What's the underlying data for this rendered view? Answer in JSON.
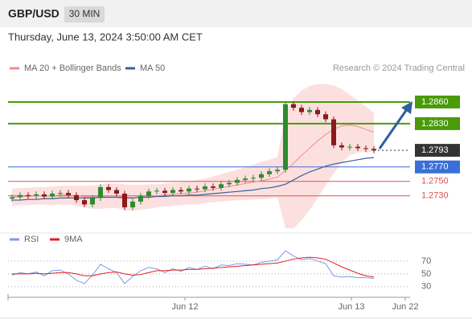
{
  "header": {
    "symbol": "GBP/USD",
    "timeframe": "30 MIN",
    "datetime": "Thursday, June 13, 2024 3:50:00 AM CET"
  },
  "chart_data": [
    {
      "type": "candlestick",
      "credit": "Research © 2024 Trading Central",
      "xlim": [
        -0.5,
        49.5
      ],
      "ylim": [
        1.2684,
        1.289
      ],
      "up_color": "#2e8b2e",
      "down_color": "#8b1a1a",
      "open": [
        1.2726,
        1.2728,
        1.2731,
        1.273,
        1.2732,
        1.2729,
        1.2733,
        1.2734,
        1.2731,
        1.2724,
        1.2718,
        1.2727,
        1.2742,
        1.2738,
        1.2733,
        1.2714,
        1.2722,
        1.273,
        1.2736,
        1.2737,
        1.2734,
        1.2738,
        1.2736,
        1.274,
        1.2739,
        1.2743,
        1.2741,
        1.2746,
        1.2748,
        1.2752,
        1.2754,
        1.2755,
        1.276,
        1.2764,
        1.2766,
        1.2857,
        1.2852,
        1.2846,
        1.2849,
        1.2843,
        1.2836,
        1.28,
        1.2797,
        1.2798,
        1.2796,
        1.2795
      ],
      "high": [
        1.2732,
        1.2735,
        1.2735,
        1.2736,
        1.2736,
        1.2737,
        1.2738,
        1.2738,
        1.2735,
        1.2728,
        1.2731,
        1.2746,
        1.2746,
        1.2742,
        1.2737,
        1.2726,
        1.2734,
        1.274,
        1.2741,
        1.2741,
        1.2742,
        1.2742,
        1.2744,
        1.2744,
        1.2747,
        1.2747,
        1.275,
        1.2752,
        1.2756,
        1.2758,
        1.2759,
        1.2764,
        1.2768,
        1.277,
        1.2861,
        1.2861,
        1.2856,
        1.2853,
        1.2853,
        1.2847,
        1.284,
        1.2804,
        1.2802,
        1.2802,
        1.28,
        1.2799
      ],
      "low": [
        1.2722,
        1.2724,
        1.2726,
        1.2726,
        1.2725,
        1.2725,
        1.2729,
        1.2727,
        1.272,
        1.2714,
        1.2714,
        1.2723,
        1.2734,
        1.2729,
        1.271,
        1.271,
        1.2718,
        1.2726,
        1.2732,
        1.273,
        1.273,
        1.2732,
        1.2732,
        1.2735,
        1.2735,
        1.2737,
        1.2737,
        1.2742,
        1.2744,
        1.2748,
        1.275,
        1.2751,
        1.2756,
        1.276,
        1.2762,
        1.2848,
        1.2842,
        1.2842,
        1.2839,
        1.2832,
        1.2796,
        1.2793,
        1.2793,
        1.2792,
        1.2791,
        1.2789
      ],
      "close": [
        1.2728,
        1.2731,
        1.273,
        1.2732,
        1.2729,
        1.2733,
        1.2734,
        1.2731,
        1.2724,
        1.2718,
        1.2727,
        1.2742,
        1.2738,
        1.2733,
        1.2714,
        1.2722,
        1.273,
        1.2736,
        1.2737,
        1.2734,
        1.2738,
        1.2736,
        1.274,
        1.2739,
        1.2743,
        1.2741,
        1.2746,
        1.2748,
        1.2752,
        1.2754,
        1.2755,
        1.276,
        1.2764,
        1.2766,
        1.2857,
        1.2852,
        1.2846,
        1.2849,
        1.2843,
        1.2836,
        1.28,
        1.2797,
        1.2798,
        1.2796,
        1.2795,
        1.2793
      ],
      "series": [
        {
          "name": "MA 20 + Bollinger Bands",
          "color": "#f08c8c",
          "values": [
            1.2728,
            1.2729,
            1.2729,
            1.273,
            1.273,
            1.273,
            1.2731,
            1.2731,
            1.273,
            1.2729,
            1.2728,
            1.2729,
            1.273,
            1.273,
            1.2728,
            1.2727,
            1.2728,
            1.2729,
            1.273,
            1.2731,
            1.2732,
            1.2733,
            1.2734,
            1.2735,
            1.2737,
            1.2739,
            1.2741,
            1.2743,
            1.2745,
            1.2747,
            1.2749,
            1.2751,
            1.2753,
            1.2756,
            1.2765,
            1.2775,
            1.2786,
            1.2796,
            1.2806,
            1.2815,
            1.2822,
            1.2827,
            1.2828,
            1.2826,
            1.2822,
            1.2818
          ],
          "upper": [
            1.274,
            1.2741,
            1.2741,
            1.2742,
            1.2742,
            1.2743,
            1.2744,
            1.2744,
            1.2744,
            1.2744,
            1.2744,
            1.2746,
            1.2747,
            1.2747,
            1.2746,
            1.2745,
            1.2745,
            1.2746,
            1.2746,
            1.2747,
            1.2748,
            1.2749,
            1.275,
            1.2752,
            1.2754,
            1.2757,
            1.276,
            1.2763,
            1.2766,
            1.277,
            1.2773,
            1.2777,
            1.278,
            1.2784,
            1.2845,
            1.2865,
            1.2876,
            1.2882,
            1.2885,
            1.2885,
            1.2883,
            1.2878,
            1.287,
            1.2862,
            1.2854,
            1.2845
          ],
          "lower": [
            1.2716,
            1.2717,
            1.2717,
            1.2718,
            1.2718,
            1.2717,
            1.2718,
            1.2718,
            1.2716,
            1.2714,
            1.2712,
            1.2712,
            1.2713,
            1.2713,
            1.271,
            1.2709,
            1.2711,
            1.2712,
            1.2714,
            1.2715,
            1.2716,
            1.2717,
            1.2718,
            1.2718,
            1.272,
            1.2721,
            1.2722,
            1.2723,
            1.2724,
            1.2724,
            1.2725,
            1.2725,
            1.2726,
            1.2728,
            1.2685,
            1.2685,
            1.2696,
            1.271,
            1.2727,
            1.2745,
            1.2761,
            1.2776,
            1.2786,
            1.279,
            1.279,
            1.2791
          ],
          "band_color": "#fbd6d6"
        },
        {
          "name": "MA 50",
          "color": "#3d5f9a",
          "values": [
            1.2724,
            1.2724,
            1.2725,
            1.2725,
            1.2726,
            1.2726,
            1.2727,
            1.2727,
            1.2727,
            1.2727,
            1.2727,
            1.2728,
            1.2728,
            1.2728,
            1.2727,
            1.2727,
            1.2728,
            1.2728,
            1.2729,
            1.2729,
            1.273,
            1.273,
            1.2731,
            1.2731,
            1.2732,
            1.2733,
            1.2734,
            1.2735,
            1.2736,
            1.2737,
            1.2738,
            1.274,
            1.2741,
            1.2743,
            1.2746,
            1.2752,
            1.2758,
            1.2763,
            1.2767,
            1.2771,
            1.2774,
            1.2776,
            1.2778,
            1.278,
            1.2782,
            1.2783
          ]
        }
      ],
      "levels": [
        {
          "value": 1.286,
          "label": "1.2860",
          "color": "#4a9a0a",
          "style": "box"
        },
        {
          "value": 1.283,
          "label": "1.2830",
          "color": "#4a9a0a",
          "style": "box"
        },
        {
          "value": 1.2793,
          "label": "1.2793",
          "color": "#333333",
          "style": "current"
        },
        {
          "value": 1.277,
          "label": "1.2770",
          "color": "#3a6fd8",
          "style": "box"
        },
        {
          "value": 1.275,
          "label": "1.2750",
          "color": "#e05050",
          "style": "text"
        },
        {
          "value": 1.273,
          "label": "1.2730",
          "color": "#e05050",
          "style": "text"
        }
      ]
    },
    {
      "type": "line",
      "xlim": [
        -0.5,
        49.5
      ],
      "ylim": [
        16,
        90
      ],
      "yticks": [
        70,
        50,
        30
      ],
      "xticks": [
        {
          "value": 21.5,
          "label": "Jun 12"
        },
        {
          "value": 42.2,
          "label": "Jun 13"
        },
        {
          "value": 48.9,
          "label": "Jun 22"
        }
      ],
      "series": [
        {
          "name": "RSI",
          "color": "#7a9be8",
          "values": [
            48,
            52,
            50,
            53,
            47,
            55,
            56,
            50,
            40,
            35,
            48,
            65,
            58,
            52,
            35,
            46,
            55,
            60,
            58,
            52,
            58,
            54,
            60,
            57,
            62,
            58,
            64,
            63,
            66,
            65,
            64,
            68,
            70,
            72,
            86,
            78,
            72,
            74,
            70,
            66,
            47,
            45,
            46,
            44,
            44,
            43
          ]
        },
        {
          "name": "9MA",
          "color": "#e02020",
          "values": [
            50,
            50,
            50,
            51,
            50,
            51,
            52,
            52,
            50,
            47,
            47,
            50,
            52,
            53,
            50,
            48,
            49,
            52,
            55,
            55,
            56,
            56,
            57,
            57,
            58,
            59,
            60,
            61,
            62,
            63,
            64,
            65,
            66,
            67,
            70,
            73,
            75,
            76,
            75,
            73,
            67,
            61,
            56,
            51,
            47,
            45
          ]
        }
      ]
    }
  ]
}
